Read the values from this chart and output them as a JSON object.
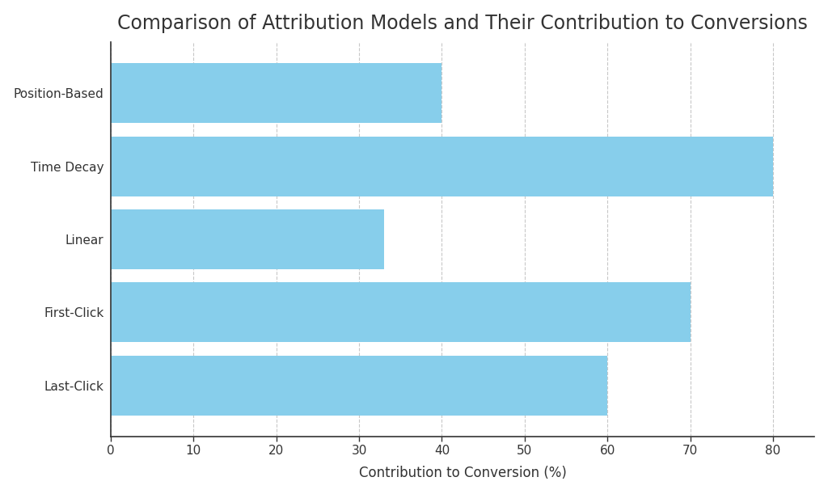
{
  "title": "Comparison of Attribution Models and Their Contribution to Conversions",
  "categories": [
    "Last-Click",
    "First-Click",
    "Linear",
    "Time Decay",
    "Position-Based"
  ],
  "values": [
    60,
    70,
    33,
    80,
    40
  ],
  "bar_color": "#87CEEB",
  "xlabel": "Contribution to Conversion (%)",
  "xlim": [
    0,
    85
  ],
  "xticks": [
    0,
    10,
    20,
    30,
    40,
    50,
    60,
    70,
    80
  ],
  "background_color": "#FFFFFF",
  "grid_color": "#C8C8C8",
  "title_fontsize": 17,
  "label_fontsize": 12,
  "tick_fontsize": 11,
  "bar_height": 0.82
}
